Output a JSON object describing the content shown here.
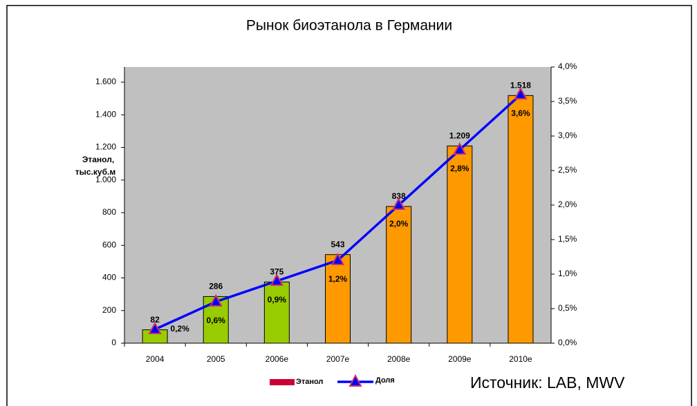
{
  "chart_data": {
    "type": "bar-line",
    "title": "Рынок биоэтанола в Германии",
    "y_label": [
      "Этанол,",
      "тыс.куб.м"
    ],
    "source": "Источник: LAB, MWV",
    "categories": [
      "2004",
      "2005",
      "2006e",
      "2007e",
      "2008e",
      "2009e",
      "2010e"
    ],
    "series": [
      {
        "name": "Этанол",
        "type": "bar",
        "color": "#cc0033",
        "bar_colors": [
          "#99cc00",
          "#99cc00",
          "#99cc00",
          "#ff9900",
          "#ff9900",
          "#ff9900",
          "#ff9900"
        ],
        "values": [
          82,
          286,
          375,
          543,
          838,
          1209,
          1518
        ],
        "value_labels": [
          "82",
          "286",
          "375",
          "543",
          "838",
          "1.209",
          "1.518"
        ]
      },
      {
        "name": "Доля",
        "type": "line",
        "axis": "y2",
        "color": "#0000ff",
        "marker_color": "#cc3366",
        "values": [
          0.2,
          0.6,
          0.9,
          1.2,
          2.0,
          2.8,
          3.6
        ],
        "value_labels": [
          "0,2%",
          "0,6%",
          "0,9%",
          "1,2%",
          "2,0%",
          "2,8%",
          "3,6%"
        ]
      }
    ],
    "ylim": [
      0,
      1693
    ],
    "yticks": [
      0,
      200,
      400,
      600,
      800,
      {
        "value": 1000,
        "label": "1.000"
      },
      {
        "value": 1200,
        "label": "1.200"
      },
      {
        "value": 1400,
        "label": "1.400"
      },
      {
        "value": 1600,
        "label": "1.600"
      }
    ],
    "y2lim": [
      0,
      4
    ],
    "y2ticks": [
      {
        "value": 0,
        "label": "0,0%"
      },
      {
        "value": 0.5,
        "label": "0,5%"
      },
      {
        "value": 1,
        "label": "1,0%"
      },
      {
        "value": 1.5,
        "label": "1,5%"
      },
      {
        "value": 2,
        "label": "2,0%"
      },
      {
        "value": 2.5,
        "label": "2,5%"
      },
      {
        "value": 3,
        "label": "3,0%"
      },
      {
        "value": 3.5,
        "label": "3,5%"
      },
      {
        "value": 4,
        "label": "4,0%"
      }
    ],
    "plot_background": "#c0c0c0"
  }
}
